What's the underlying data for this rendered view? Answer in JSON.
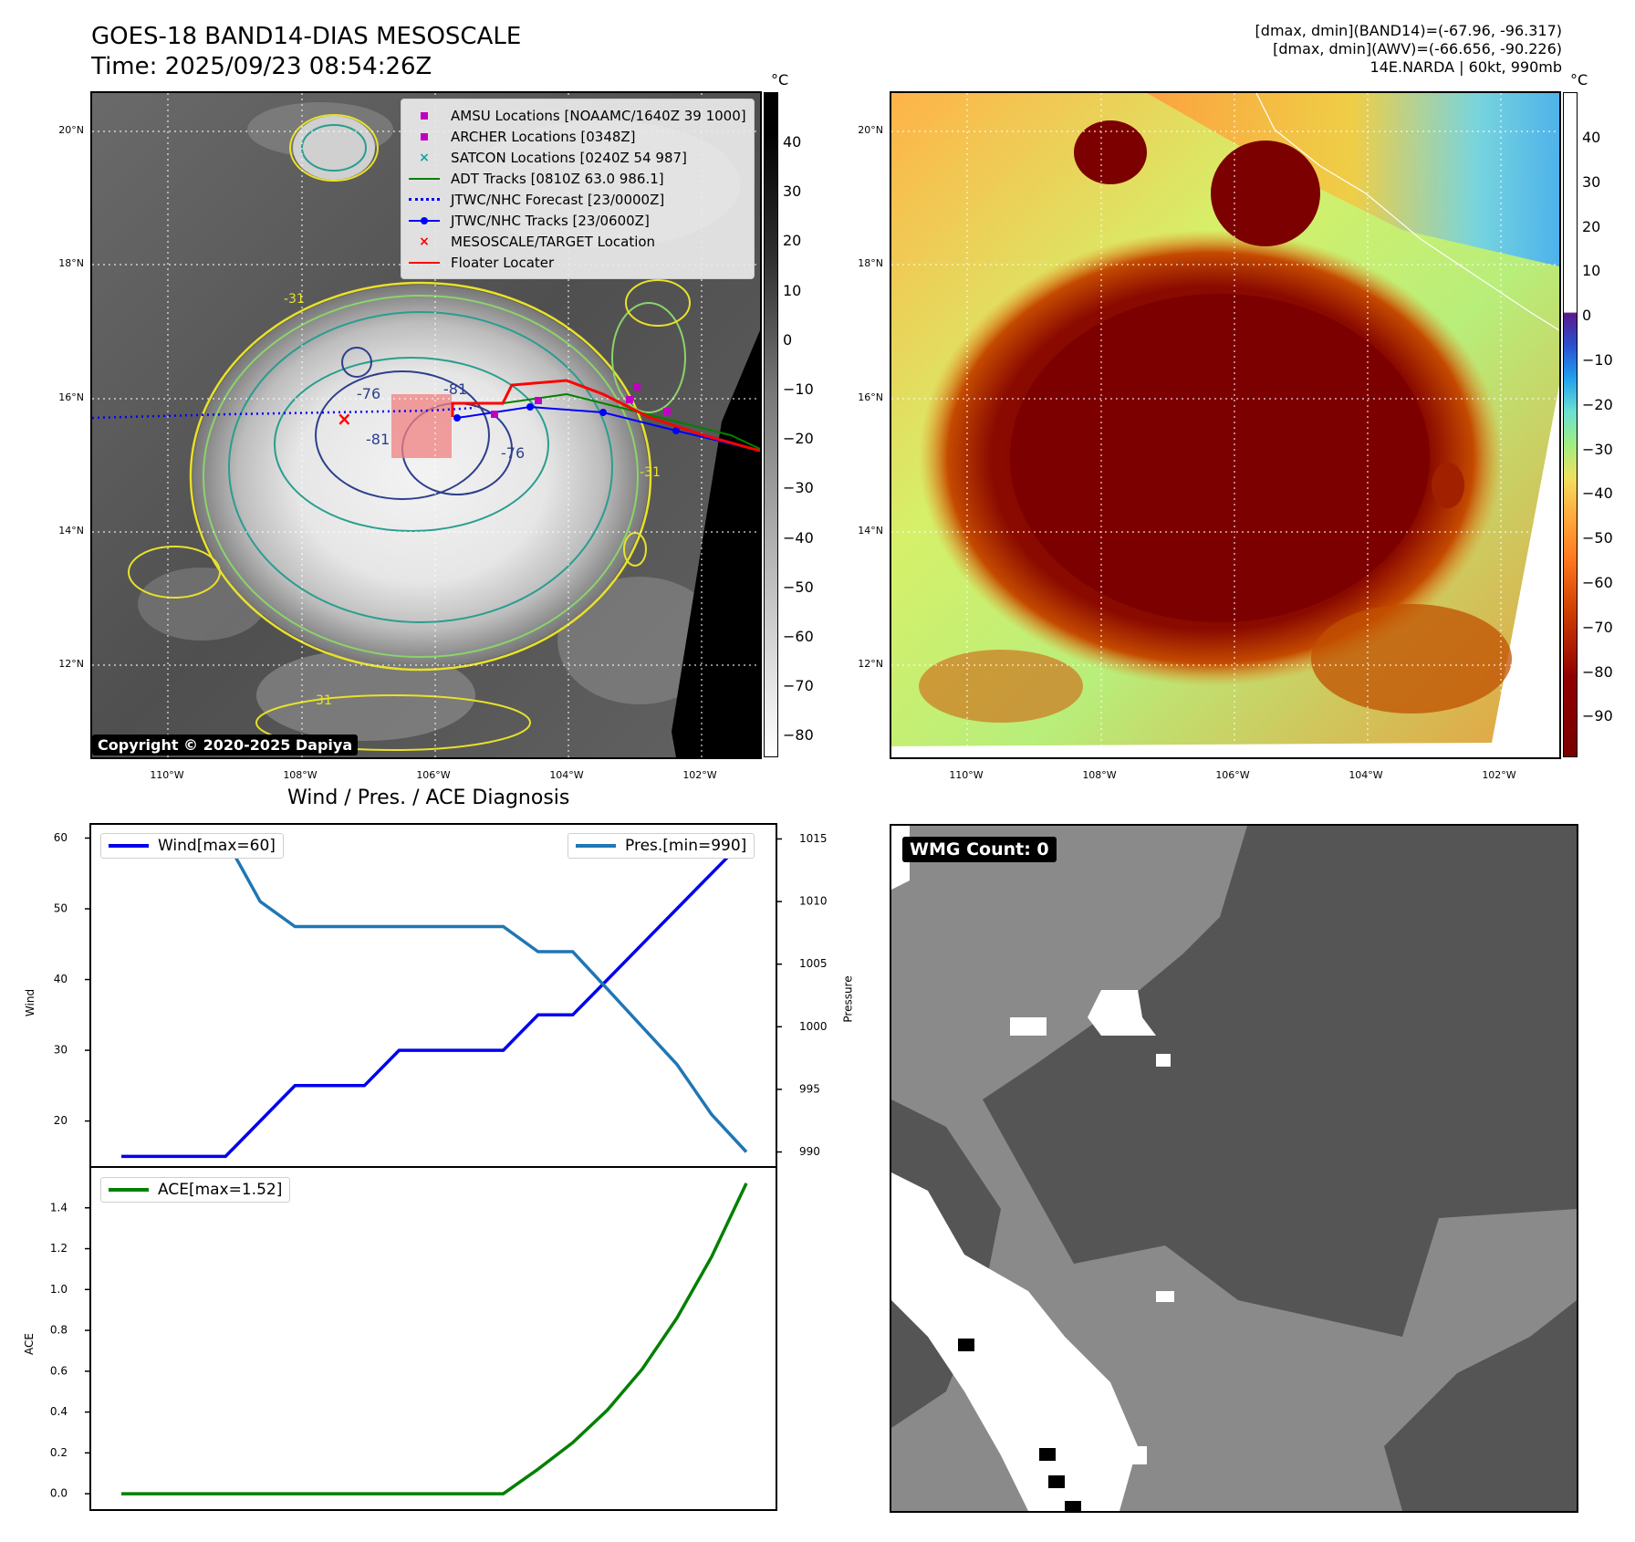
{
  "header": {
    "title_line1": "GOES-18 BAND14-DIAS MESOSCALE",
    "title_line2": "Time: 2025/09/23 08:54:26Z",
    "stats_line1": "[dmax, dmin](BAND14)=(-67.96, -96.317)",
    "stats_line2": "[dmax, dmin](AWV)=(-66.656, -90.226)",
    "stats_line3": "14E.NARDA | 60kt, 990mb"
  },
  "ir_map": {
    "legend": [
      {
        "label": "AMSU Locations [NOAAMC/1640Z 39 1000]",
        "color": "#c000c0",
        "symbol": "square"
      },
      {
        "label": "ARCHER Locations [0348Z]",
        "color": "#c000c0",
        "symbol": "square"
      },
      {
        "label": "SATCON Locations [0240Z 54 987]",
        "color": "#17a0a0",
        "symbol": "x"
      },
      {
        "label": "ADT Tracks [0810Z 63.0 986.1]",
        "color": "#008000",
        "symbol": "line"
      },
      {
        "label": "JTWC/NHC Forecast [23/0000Z]",
        "color": "#0000ff",
        "symbol": "dotted"
      },
      {
        "label": "JTWC/NHC Tracks [23/0600Z]",
        "color": "#0000ff",
        "symbol": "line-dot"
      },
      {
        "label": "MESOSCALE/TARGET Location",
        "color": "#ff0000",
        "symbol": "x"
      },
      {
        "label": "Floater Locater",
        "color": "#ff0000",
        "symbol": "line"
      }
    ],
    "copyright": "Copyright © 2020-2025 Dapiya",
    "contour_labels": [
      "-81",
      "-76",
      "-76",
      "-81",
      "-31",
      "-31",
      "-31"
    ],
    "lat_labels": [
      "20°N",
      "18°N",
      "16°N",
      "14°N",
      "12°N"
    ],
    "lon_labels": [
      "110°W",
      "108°W",
      "106°W",
      "104°W",
      "102°W"
    ],
    "colorbar_unit": "°C",
    "colorbar_ticks": [
      "40",
      "30",
      "20",
      "10",
      "0",
      "−10",
      "−20",
      "−30",
      "−40",
      "−50",
      "−60",
      "−70",
      "−80"
    ]
  },
  "awv_map": {
    "lat_labels": [
      "20°N",
      "18°N",
      "16°N",
      "14°N",
      "12°N"
    ],
    "lon_labels": [
      "110°W",
      "108°W",
      "106°W",
      "104°W",
      "102°W"
    ],
    "colorbar_unit": "°C",
    "colorbar_ticks": [
      "40",
      "30",
      "20",
      "10",
      "0",
      "−10",
      "−20",
      "−30",
      "−40",
      "−50",
      "−60",
      "−70",
      "−80",
      "−90"
    ]
  },
  "wmg": {
    "badge": "WMG Count: 0"
  },
  "diagnosis": {
    "title": "Wind / Pres. / ACE Diagnosis",
    "wind_ylabel": "Wind",
    "pres_ylabel": "Pressure",
    "ace_ylabel": "ACE",
    "wind_legend": "Wind[max=60]",
    "pres_legend": "Pres.[min=990]",
    "ace_legend": "ACE[max=1.52]",
    "wind_ticks": [
      "60",
      "50",
      "40",
      "30",
      "20"
    ],
    "pres_ticks": [
      "1015",
      "1010",
      "1005",
      "1000",
      "995",
      "990"
    ],
    "ace_ticks": [
      "1.4",
      "1.2",
      "1.0",
      "0.8",
      "0.6",
      "0.4",
      "0.2",
      "0.0"
    ],
    "colors": {
      "wind": "#0000ee",
      "pres": "#1f77b4",
      "ace": "#008000"
    }
  },
  "chart_data": [
    {
      "type": "line",
      "title": "Wind / Pres. / ACE Diagnosis",
      "ylabel": "Wind",
      "ylim": [
        13.5,
        62
      ],
      "x": [
        0,
        1,
        2,
        3,
        4,
        5,
        6,
        7,
        8,
        9,
        10,
        11,
        12,
        13,
        14,
        15,
        16,
        17,
        18,
        19
      ],
      "series": [
        {
          "name": "Wind[max=60]",
          "values": [
            15,
            15,
            15,
            15,
            20,
            25,
            25,
            25,
            30,
            30,
            30,
            30,
            35,
            35,
            40,
            45,
            50,
            55,
            60,
            null
          ]
        }
      ]
    },
    {
      "type": "line",
      "ylabel": "Pressure",
      "ylim": [
        988.8,
        1016.2
      ],
      "x": [
        0,
        1,
        2,
        3,
        4,
        5,
        6,
        7,
        8,
        9,
        10,
        11,
        12,
        13,
        14,
        15,
        16,
        17,
        18,
        19
      ],
      "series": [
        {
          "name": "Pres.[min=990]",
          "values": [
            1015,
            1015,
            1015,
            1015,
            1010,
            1008,
            1008,
            1008,
            1008,
            1008,
            1008,
            1008,
            1006,
            1006,
            1003,
            1000,
            997,
            993,
            990,
            null
          ]
        }
      ]
    },
    {
      "type": "line",
      "ylabel": "ACE",
      "ylim": [
        -0.08,
        1.6
      ],
      "x": [
        0,
        1,
        2,
        3,
        4,
        5,
        6,
        7,
        8,
        9,
        10,
        11,
        12,
        13,
        14,
        15,
        16,
        17,
        18,
        19
      ],
      "series": [
        {
          "name": "ACE[max=1.52]",
          "values": [
            0,
            0,
            0,
            0,
            0,
            0,
            0,
            0,
            0,
            0,
            0,
            0,
            0.12,
            0.25,
            0.41,
            0.61,
            0.86,
            1.16,
            1.52,
            null
          ]
        }
      ]
    }
  ]
}
